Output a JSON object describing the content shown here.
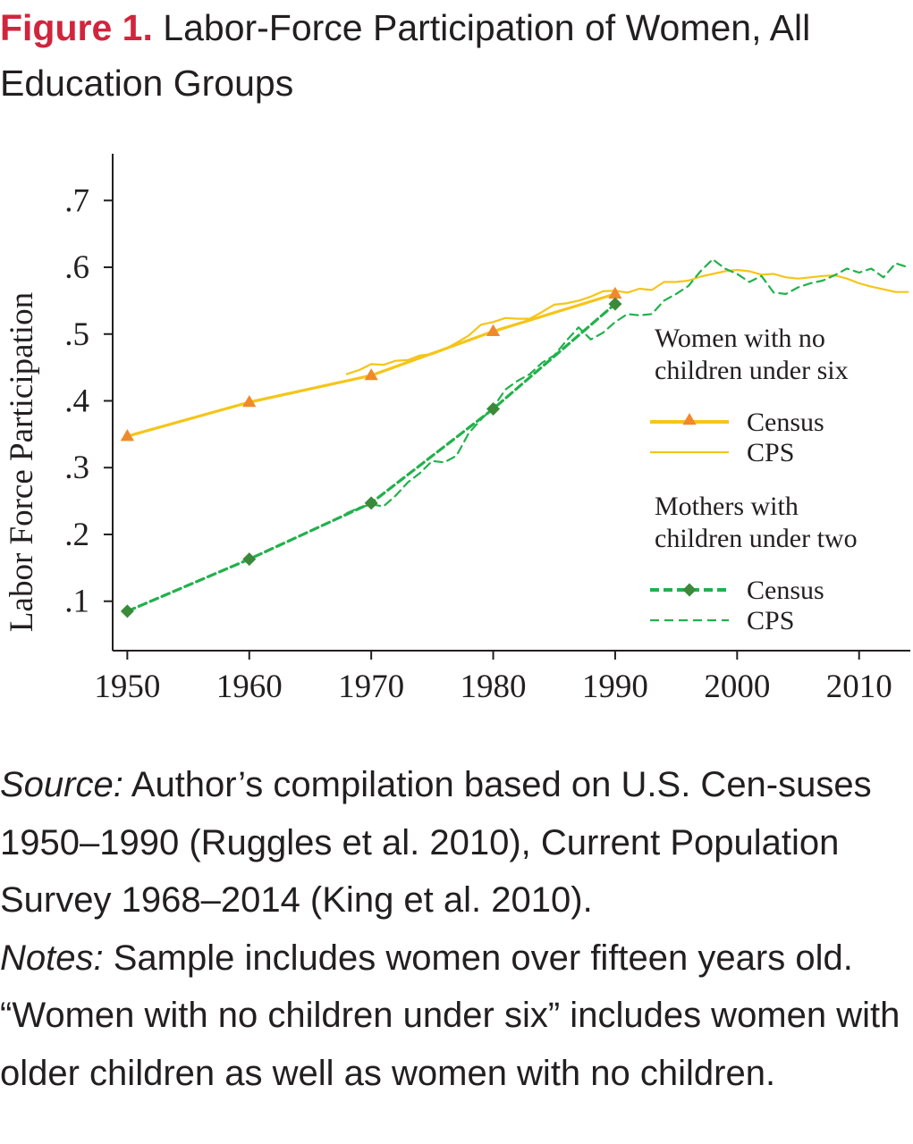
{
  "figure": {
    "label": "Figure 1.",
    "title": "Labor-Force Participation of Women, All Education Groups"
  },
  "chart_data": {
    "type": "line",
    "ylabel": "Labor Force Participation",
    "xlabel": "",
    "xlim": [
      1948.8,
      2014.2
    ],
    "ylim": [
      0.026,
      0.77
    ],
    "x_ticks": [
      1950,
      1960,
      1970,
      1980,
      1990,
      2000,
      2010
    ],
    "x_tick_labels": [
      "1950",
      "1960",
      "1970",
      "1980",
      "1990",
      "2000",
      "2010"
    ],
    "y_ticks": [
      0.1,
      0.2,
      0.3,
      0.4,
      0.5,
      0.6,
      0.7
    ],
    "y_tick_labels": [
      ".1",
      ".2",
      ".3",
      ".4",
      ".5",
      ".6",
      ".7"
    ],
    "legend": {
      "placement": "right",
      "groups": [
        {
          "title_line1": "Women with no",
          "title_line2": "children under six",
          "census": "Census",
          "cps": "CPS"
        },
        {
          "title_line1": "Mothers with",
          "title_line2": "children under two",
          "census": "Census",
          "cps": "CPS"
        }
      ]
    },
    "series": [
      {
        "group": "Women with no children under six",
        "source": "Census",
        "color": "#f5c518",
        "marker_color": "#ee8a2b",
        "marker": "triangle",
        "style": "thick-solid",
        "points": [
          [
            1950,
            0.347
          ],
          [
            1960,
            0.398
          ],
          [
            1970,
            0.438
          ],
          [
            1980,
            0.504
          ],
          [
            1990,
            0.56
          ]
        ]
      },
      {
        "group": "Women with no children under six",
        "source": "CPS",
        "color": "#f5c518",
        "style": "thin-solid",
        "points": [
          [
            1968,
            0.44
          ],
          [
            1969,
            0.446
          ],
          [
            1970,
            0.455
          ],
          [
            1971,
            0.454
          ],
          [
            1972,
            0.46
          ],
          [
            1973,
            0.461
          ],
          [
            1974,
            0.468
          ],
          [
            1975,
            0.47
          ],
          [
            1976,
            0.477
          ],
          [
            1977,
            0.487
          ],
          [
            1978,
            0.498
          ],
          [
            1979,
            0.514
          ],
          [
            1980,
            0.518
          ],
          [
            1981,
            0.524
          ],
          [
            1982,
            0.523
          ],
          [
            1983,
            0.523
          ],
          [
            1984,
            0.533
          ],
          [
            1985,
            0.544
          ],
          [
            1986,
            0.546
          ],
          [
            1987,
            0.55
          ],
          [
            1988,
            0.556
          ],
          [
            1989,
            0.564
          ],
          [
            1990,
            0.565
          ],
          [
            1991,
            0.562
          ],
          [
            1992,
            0.568
          ],
          [
            1993,
            0.566
          ],
          [
            1994,
            0.578
          ],
          [
            1995,
            0.578
          ],
          [
            1996,
            0.58
          ],
          [
            1997,
            0.586
          ],
          [
            1998,
            0.59
          ],
          [
            1999,
            0.594
          ],
          [
            2000,
            0.596
          ],
          [
            2001,
            0.594
          ],
          [
            2002,
            0.589
          ],
          [
            2003,
            0.59
          ],
          [
            2004,
            0.585
          ],
          [
            2005,
            0.583
          ],
          [
            2006,
            0.585
          ],
          [
            2007,
            0.587
          ],
          [
            2008,
            0.588
          ],
          [
            2009,
            0.583
          ],
          [
            2010,
            0.576
          ],
          [
            2011,
            0.571
          ],
          [
            2012,
            0.567
          ],
          [
            2013,
            0.563
          ],
          [
            2014,
            0.563
          ]
        ]
      },
      {
        "group": "Mothers with children under two",
        "source": "Census",
        "color": "#22b14c",
        "marker_color": "#3a8a3a",
        "marker": "diamond",
        "style": "thick-dashed",
        "points": [
          [
            1950,
            0.085
          ],
          [
            1960,
            0.163
          ],
          [
            1970,
            0.247
          ],
          [
            1980,
            0.388
          ],
          [
            1990,
            0.545
          ]
        ]
      },
      {
        "group": "Mothers with children under two",
        "source": "CPS",
        "color": "#22b14c",
        "style": "thin-dashed",
        "points": [
          [
            1968,
            0.232
          ],
          [
            1969,
            0.24
          ],
          [
            1970,
            0.245
          ],
          [
            1971,
            0.242
          ],
          [
            1972,
            0.258
          ],
          [
            1973,
            0.278
          ],
          [
            1974,
            0.292
          ],
          [
            1975,
            0.31
          ],
          [
            1976,
            0.308
          ],
          [
            1977,
            0.318
          ],
          [
            1978,
            0.352
          ],
          [
            1979,
            0.372
          ],
          [
            1980,
            0.39
          ],
          [
            1981,
            0.417
          ],
          [
            1982,
            0.43
          ],
          [
            1983,
            0.44
          ],
          [
            1984,
            0.457
          ],
          [
            1985,
            0.468
          ],
          [
            1986,
            0.49
          ],
          [
            1987,
            0.51
          ],
          [
            1988,
            0.492
          ],
          [
            1989,
            0.502
          ],
          [
            1990,
            0.518
          ],
          [
            1991,
            0.53
          ],
          [
            1992,
            0.528
          ],
          [
            1993,
            0.53
          ],
          [
            1994,
            0.55
          ],
          [
            1995,
            0.56
          ],
          [
            1996,
            0.572
          ],
          [
            1997,
            0.594
          ],
          [
            1998,
            0.612
          ],
          [
            1999,
            0.598
          ],
          [
            2000,
            0.59
          ],
          [
            2001,
            0.578
          ],
          [
            2002,
            0.587
          ],
          [
            2003,
            0.562
          ],
          [
            2004,
            0.56
          ],
          [
            2005,
            0.57
          ],
          [
            2006,
            0.576
          ],
          [
            2007,
            0.58
          ],
          [
            2008,
            0.588
          ],
          [
            2009,
            0.598
          ],
          [
            2010,
            0.592
          ],
          [
            2011,
            0.598
          ],
          [
            2012,
            0.585
          ],
          [
            2013,
            0.606
          ],
          [
            2014,
            0.6
          ]
        ]
      }
    ]
  },
  "notes": {
    "source_label": "Source:",
    "source_text": " Author’s compilation based on U.S. Cen-suses 1950–1990 (Ruggles et al. 2010), Current Population Survey 1968–2014 (King et al. 2010).",
    "notes_label": "Notes:",
    "notes_text": " Sample includes women over fifteen years old. “Women with no children under six” includes women with older children as well as women with no children."
  }
}
